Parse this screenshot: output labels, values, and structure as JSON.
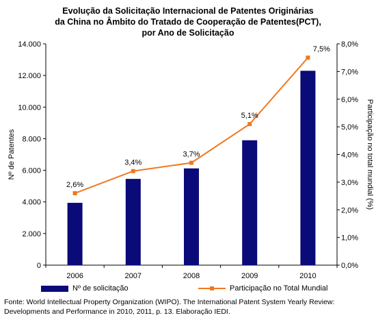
{
  "title_lines": [
    "Evolução da Solicitação Internacional de Patentes Originárias",
    "da China no Âmbito do Tratado de Cooperação de Patentes(PCT),",
    "por Ano de Solicitação"
  ],
  "chart_data": {
    "type": "bar+line",
    "categories": [
      "2006",
      "2007",
      "2008",
      "2009",
      "2010"
    ],
    "series": [
      {
        "name": "Nº de solicitação",
        "type": "bar",
        "axis": "left",
        "color": "#0a0a78",
        "values": [
          3942,
          5455,
          6120,
          7900,
          12296
        ]
      },
      {
        "name": "Participação no Total Mundial",
        "type": "line",
        "axis": "right",
        "color": "#f07820",
        "values": [
          2.6,
          3.4,
          3.7,
          5.1,
          7.5
        ],
        "data_labels": [
          "2,6%",
          "3,4%",
          "3,7%",
          "5,1%",
          "7,5%"
        ]
      }
    ],
    "ylabel_left": "Nº de Patentes",
    "ylabel_right": "Participação no total mundial (%)",
    "ylim_left": [
      0,
      14000
    ],
    "ylim_right": [
      0,
      8
    ],
    "left_ticks": [
      "0",
      "2.000",
      "4.000",
      "6.000",
      "8.000",
      "10.000",
      "12.000",
      "14.000"
    ],
    "right_ticks": [
      "0,0%",
      "1,0%",
      "2,0%",
      "3,0%",
      "4,0%",
      "5,0%",
      "6,0%",
      "7,0%",
      "8,0%"
    ],
    "grid": false,
    "legend_position": "bottom"
  },
  "source_lines": [
    "Fonte: World Intellectual Property Organization (WIPO). The International Patent System Yearly Review:",
    "Developments and Performance in 2010, 2011, p. 13. Elaboração IEDI."
  ]
}
